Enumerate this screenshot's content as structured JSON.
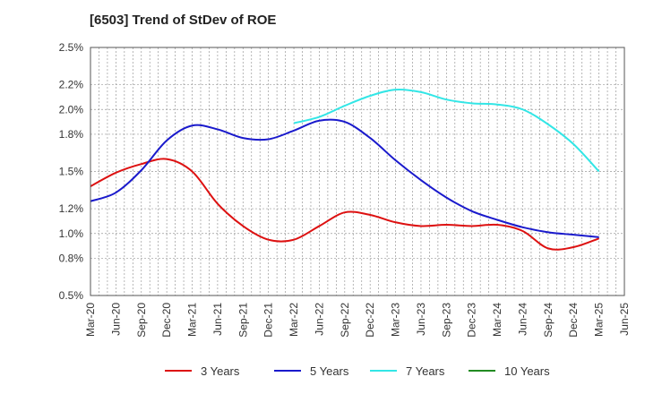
{
  "title": "[6503]  Trend of StDev of ROE",
  "chart_data": {
    "type": "line",
    "title": "[6503]  Trend of StDev of ROE",
    "xlabel": "",
    "ylabel": "",
    "x_categories": [
      "Mar-20",
      "Jun-20",
      "Sep-20",
      "Dec-20",
      "Mar-21",
      "Jun-21",
      "Sep-21",
      "Dec-21",
      "Mar-22",
      "Jun-22",
      "Sep-22",
      "Dec-22",
      "Mar-23",
      "Jun-23",
      "Sep-23",
      "Dec-23",
      "Mar-24",
      "Jun-24",
      "Sep-24",
      "Dec-24",
      "Mar-25",
      "Jun-25"
    ],
    "y_ticks": [
      "0.5%",
      "0.8%",
      "1.0%",
      "1.2%",
      "1.5%",
      "1.8%",
      "2.0%",
      "2.2%",
      "2.5%"
    ],
    "ylim": [
      0.5,
      2.5
    ],
    "grid": true,
    "legend_position": "bottom",
    "series": [
      {
        "name": "3 Years",
        "color": "#dd1111",
        "x": [
          "Mar-20",
          "Jun-20",
          "Sep-20",
          "Dec-20",
          "Mar-21",
          "Jun-21",
          "Sep-21",
          "Dec-21",
          "Mar-22",
          "Jun-22",
          "Sep-22",
          "Dec-22",
          "Mar-23",
          "Jun-23",
          "Sep-23",
          "Dec-23",
          "Mar-24",
          "Jun-24",
          "Sep-24",
          "Dec-24",
          "Mar-25"
        ],
        "values": [
          1.38,
          1.49,
          1.56,
          1.6,
          1.5,
          1.24,
          1.06,
          0.95,
          0.95,
          1.06,
          1.17,
          1.15,
          1.09,
          1.06,
          1.07,
          1.06,
          1.07,
          1.02,
          0.88,
          0.89,
          0.96
        ]
      },
      {
        "name": "5 Years",
        "color": "#1a1acc",
        "x": [
          "Mar-20",
          "Jun-20",
          "Sep-20",
          "Dec-20",
          "Mar-21",
          "Jun-21",
          "Sep-21",
          "Dec-21",
          "Mar-22",
          "Jun-22",
          "Sep-22",
          "Dec-22",
          "Mar-23",
          "Jun-23",
          "Sep-23",
          "Dec-23",
          "Mar-24",
          "Jun-24",
          "Sep-24",
          "Dec-24",
          "Mar-25"
        ],
        "values": [
          1.26,
          1.33,
          1.51,
          1.75,
          1.87,
          1.84,
          1.77,
          1.76,
          1.83,
          1.91,
          1.9,
          1.77,
          1.59,
          1.43,
          1.29,
          1.18,
          1.11,
          1.05,
          1.01,
          0.99,
          0.97
        ]
      },
      {
        "name": "7 Years",
        "color": "#33e6e6",
        "x": [
          "Mar-22",
          "Jun-22",
          "Sep-22",
          "Dec-22",
          "Mar-23",
          "Jun-23",
          "Sep-23",
          "Dec-23",
          "Mar-24",
          "Jun-24",
          "Sep-24",
          "Dec-24",
          "Mar-25"
        ],
        "values": [
          1.89,
          1.94,
          2.03,
          2.11,
          2.16,
          2.14,
          2.08,
          2.05,
          2.04,
          2.0,
          1.88,
          1.72,
          1.5
        ]
      },
      {
        "name": "10 Years",
        "color": "#228b22",
        "x": [],
        "values": []
      }
    ]
  }
}
